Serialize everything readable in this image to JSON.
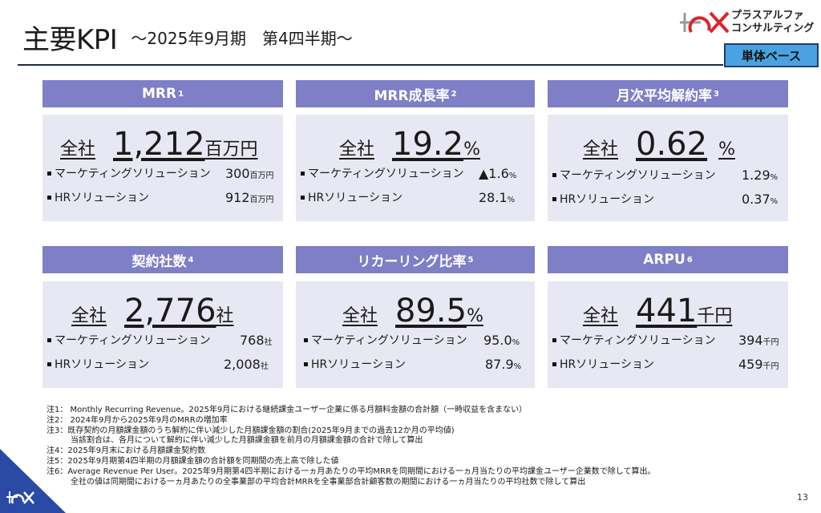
{
  "header": {
    "title": "主要KPI",
    "subtitle": "～2025年9月期　第4四半期～",
    "brand_line1": "プラスアルファ",
    "brand_line2": "コンサルティング",
    "badge": "単体ベース"
  },
  "kpis": [
    {
      "title": "MRR",
      "note": "1",
      "company_label": "全社",
      "value": "1,212",
      "unit": "百万円",
      "rows": [
        {
          "label": "マーケティングソリューション",
          "value": "300",
          "unit": "百万円"
        },
        {
          "label": "HRソリューション",
          "value": "912",
          "unit": "百万円"
        }
      ]
    },
    {
      "title": "MRR成長率",
      "note": "2",
      "company_label": "全社",
      "value": "19.2",
      "unit": "%",
      "rows": [
        {
          "label": "マーケティングソリューション",
          "value": "▲1.6",
          "unit": "%"
        },
        {
          "label": "HRソリューション",
          "value": "28.1",
          "unit": "%"
        }
      ]
    },
    {
      "title": "月次平均解約率",
      "note": "3",
      "company_label": "全社",
      "value": "0.62",
      "unit": "%",
      "rows": [
        {
          "label": "マーケティングソリューション",
          "value": "1.29",
          "unit": "%"
        },
        {
          "label": "HRソリューション",
          "value": "0.37",
          "unit": "%"
        }
      ]
    },
    {
      "title": "契約社数",
      "note": "4",
      "company_label": "全社",
      "value": "2,776",
      "unit": "社",
      "rows": [
        {
          "label": "マーケティングソリューション",
          "value": "768",
          "unit": "社"
        },
        {
          "label": "HRソリューション",
          "value": "2,008",
          "unit": "社"
        }
      ]
    },
    {
      "title": "リカーリング比率",
      "note": "5",
      "company_label": "全社",
      "value": "89.5",
      "unit": "%",
      "rows": [
        {
          "label": "マーケティングソリューション",
          "value": "95.0",
          "unit": "%"
        },
        {
          "label": "HRソリューション",
          "value": "87.9",
          "unit": "%"
        }
      ]
    },
    {
      "title": "ARPU",
      "note": "6",
      "company_label": "全社",
      "value": "441",
      "unit": "千円",
      "rows": [
        {
          "label": "マーケティングソリューション",
          "value": "394",
          "unit": "千円"
        },
        {
          "label": "HRソリューション",
          "value": "459",
          "unit": "千円"
        }
      ]
    }
  ],
  "notes": [
    "注1：  Monthly Recurring Revenue。2025年9月における継続課金ユーザー企業に係る月額料金額の合計額（一時収益を含まない）",
    "注2：  2024年9月から2025年9月のMRRの増加率",
    "注3：既存契約の月額課金額のうち解約に伴い減少した月額課金額の割合(2025年9月までの過去12か月の平均値)",
    "　　　当該割合は、各月について解約に伴い減少した月額課金額を前月の月額課金額の合計で除して算出",
    "注4：2025年9月末における月額課金契約数",
    "注5：2025年9月期第4四半期の月額課金額の合計額を同期間の売上高で除した値",
    "注6：Average Revenue Per User。2025年9月期第4四半期における一ヵ月あたりの平均MRRを同期間における一ヵ月当たりの平均課金ユーザー企業数で除して算出。",
    "　　　全社の値は同期間における一ヵ月あたりの全事業部の平均合計MRRを全事業部合計顧客数の期間における一ヵ月当たりの平均社数で除して算出"
  ],
  "footer": {
    "page_number": "13"
  },
  "colors": {
    "header_fill": "#7f7fc7",
    "box_fill": "#e8e8f4",
    "badge_fill": "#4aa3e0",
    "accent_red": "#d9262b",
    "corner_blue": "#2b4aa6"
  }
}
